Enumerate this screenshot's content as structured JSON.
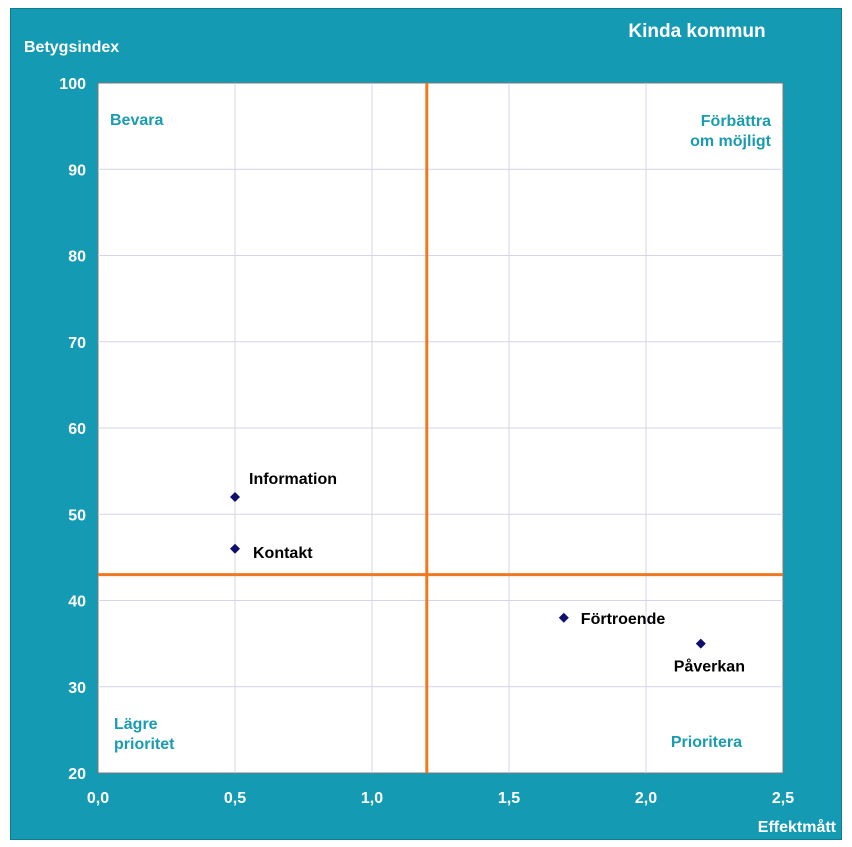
{
  "chart_data": {
    "type": "scatter",
    "title": "Kinda kommun",
    "xlabel": "Effektmått",
    "ylabel": "Betygsindex",
    "xlim": [
      0,
      2.5
    ],
    "ylim": [
      20,
      100
    ],
    "x_ticks": [
      0,
      0.5,
      1.0,
      1.5,
      2.0,
      2.5
    ],
    "x_tick_labels": [
      "0,0",
      "0,5",
      "1,0",
      "1,5",
      "2,0",
      "2,5"
    ],
    "y_ticks": [
      20,
      30,
      40,
      50,
      60,
      70,
      80,
      90,
      100
    ],
    "y_tick_labels": [
      "20",
      "30",
      "40",
      "50",
      "60",
      "70",
      "80",
      "90",
      "100"
    ],
    "grid": true,
    "divider_x": 1.2,
    "divider_y": 43,
    "points": [
      {
        "label": "Information",
        "x": 0.5,
        "y": 52
      },
      {
        "label": "Kontakt",
        "x": 0.5,
        "y": 46
      },
      {
        "label": "Förtroende",
        "x": 1.7,
        "y": 38
      },
      {
        "label": "Påverkan",
        "x": 2.2,
        "y": 35
      }
    ],
    "quadrant_labels": {
      "top_left": [
        "Bevara"
      ],
      "top_right": [
        "Förbättra",
        "om möjligt"
      ],
      "bottom_left": [
        "Lägre",
        "prioritet"
      ],
      "bottom_right": [
        "Prioritera"
      ]
    },
    "colors": {
      "frame": "#149bb3",
      "plot_bg": "#ffffff",
      "grid": "#d4d4ec",
      "divider": "#f07820",
      "marker": "#0f0f6e",
      "quadrant_text": "#1a9bb0",
      "axis_text": "#ffffff",
      "point_text": "#000000"
    }
  }
}
